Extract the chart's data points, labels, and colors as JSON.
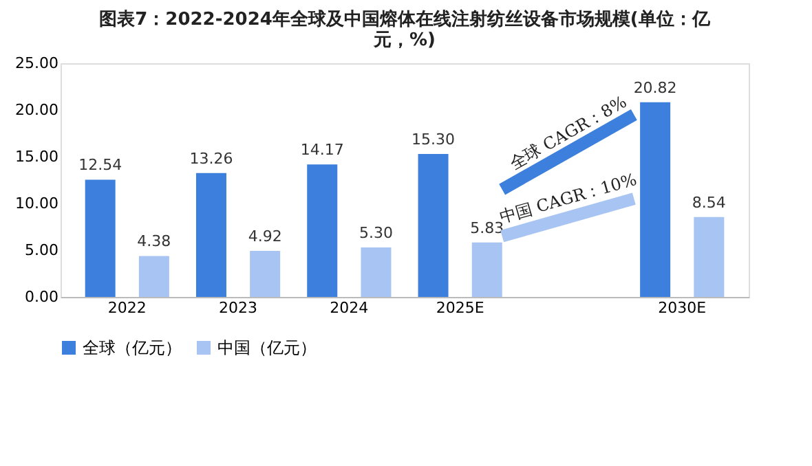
{
  "chart_data": {
    "type": "bar",
    "title": "图表7：2022-2024年全球及中国熔体在线注射纺丝设备市场规模(单位：亿元，%)",
    "categories": [
      "2022",
      "2023",
      "2024",
      "2025E",
      null,
      "2030E"
    ],
    "series": [
      {
        "name": "全球（亿元）",
        "color": "#3c7fdc",
        "values": [
          12.54,
          13.26,
          14.17,
          15.3,
          null,
          20.82
        ],
        "value_labels": [
          "12.54",
          "13.26",
          "14.17",
          "15.30",
          null,
          "20.82"
        ]
      },
      {
        "name": "中国（亿元）",
        "color": "#a8c4f2",
        "values": [
          4.38,
          4.92,
          5.3,
          5.83,
          null,
          8.54
        ],
        "value_labels": [
          "4.38",
          "4.92",
          "5.30",
          "5.83",
          null,
          "8.54"
        ]
      }
    ],
    "ylim": [
      0,
      25
    ],
    "yticks": [
      {
        "value": 0,
        "label": "0.00"
      },
      {
        "value": 5,
        "label": "5.00"
      },
      {
        "value": 10,
        "label": "10.00"
      },
      {
        "value": 15,
        "label": "15.00"
      },
      {
        "value": 20,
        "label": "20.00"
      },
      {
        "value": 25,
        "label": "25.00"
      }
    ],
    "grid": false,
    "legend": "bottom",
    "annotations": [
      "全球 CAGR：8%",
      "中国 CAGR：10%"
    ]
  }
}
